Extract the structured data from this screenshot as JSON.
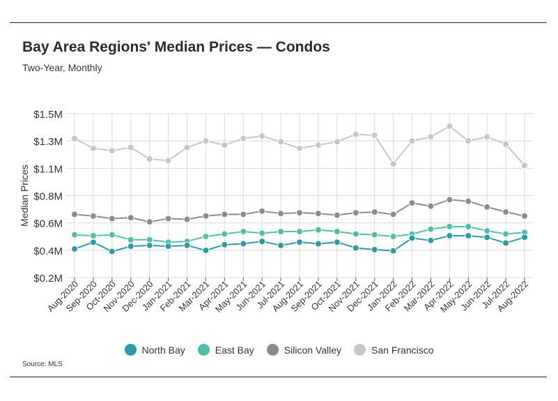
{
  "title": "Bay Area Regions' Median Prices — Condos",
  "subtitle": "Two-Year, Monthly",
  "source": "Source:  MLS",
  "chart_data": {
    "type": "line",
    "title": "Bay Area Regions' Median Prices — Condos",
    "subtitle": "Two-Year, Monthly",
    "xlabel": "",
    "ylabel": "Median Prices",
    "ylim": [
      0.2,
      1.5
    ],
    "yticks": [
      1.5,
      1.3,
      1.1,
      0.8,
      0.6,
      0.4,
      0.2
    ],
    "ytick_labels": [
      "$1.5M",
      "$1.3M",
      "$1.1M",
      "$0.8M",
      "$0.6M",
      "$0.4M",
      "$0.2M"
    ],
    "grid": true,
    "legend_position": "bottom",
    "categories": [
      "Aug-2020",
      "Sep-2020",
      "Oct-2020",
      "Nov-2020",
      "Dec-2020",
      "Jan-2021",
      "Feb-2021",
      "Mar-2021",
      "Apr-2021",
      "May-2021",
      "Jun-2021",
      "Jul-2021",
      "Aug-2021",
      "Sep-2021",
      "Oct-2021",
      "Nov-2021",
      "Dec-2021",
      "Jan-2022",
      "Feb-2022",
      "Mar-2022",
      "Apr-2022",
      "May-2022",
      "Jun-2022",
      "Jul-2022",
      "Aug-2022"
    ],
    "series": [
      {
        "name": "North Bay",
        "color": "#2e9aa8",
        "values": [
          0.427,
          0.48,
          0.407,
          0.448,
          0.455,
          0.448,
          0.455,
          0.416,
          0.461,
          0.468,
          0.487,
          0.455,
          0.481,
          0.468,
          0.481,
          0.435,
          0.422,
          0.412,
          0.513,
          0.494,
          0.532,
          0.532,
          0.519,
          0.474,
          0.519
        ]
      },
      {
        "name": "East Bay",
        "color": "#4fbfa5",
        "values": [
          0.539,
          0.532,
          0.539,
          0.5,
          0.5,
          0.481,
          0.487,
          0.526,
          0.546,
          0.565,
          0.552,
          0.565,
          0.565,
          0.578,
          0.565,
          0.546,
          0.539,
          0.526,
          0.545,
          0.584,
          0.604,
          0.604,
          0.571,
          0.546,
          0.558
        ]
      },
      {
        "name": "Silicon Valley",
        "color": "#8c8c8c",
        "values": [
          0.701,
          0.688,
          0.668,
          0.675,
          0.642,
          0.668,
          0.662,
          0.688,
          0.701,
          0.701,
          0.727,
          0.708,
          0.714,
          0.708,
          0.695,
          0.714,
          0.72,
          0.701,
          0.792,
          0.766,
          0.818,
          0.805,
          0.76,
          0.72,
          0.688
        ]
      },
      {
        "name": "San Francisco",
        "color": "#c6c6c6",
        "values": [
          1.303,
          1.225,
          1.206,
          1.232,
          1.141,
          1.128,
          1.232,
          1.284,
          1.251,
          1.303,
          1.323,
          1.277,
          1.225,
          1.251,
          1.277,
          1.336,
          1.329,
          1.102,
          1.284,
          1.316,
          1.401,
          1.284,
          1.316,
          1.258,
          1.089
        ]
      }
    ]
  }
}
